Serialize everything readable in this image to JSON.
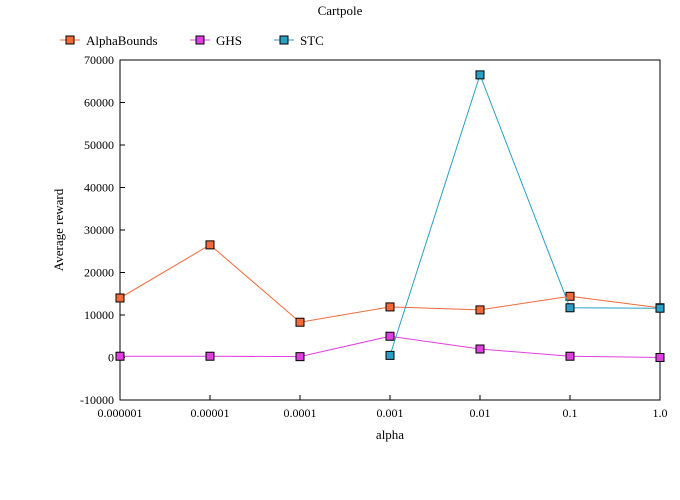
{
  "chart_data": {
    "type": "line",
    "title": "Cartpole",
    "xlabel": "alpha",
    "ylabel": "Average reward",
    "categories": [
      "0.000001",
      "0.00001",
      "0.0001",
      "0.001",
      "0.01",
      "0.1",
      "1.0"
    ],
    "ylim": [
      -10000,
      70000
    ],
    "yticks": [
      "-10000",
      "0",
      "10000",
      "20000",
      "30000",
      "40000",
      "50000",
      "60000",
      "70000"
    ],
    "legend_position": "top-left",
    "grid": false,
    "series": [
      {
        "name": "AlphaBounds",
        "color": "#f26a3a",
        "marker": "square",
        "values": [
          14000,
          26500,
          8300,
          11900,
          11200,
          14400,
          11700
        ]
      },
      {
        "name": "GHS",
        "color": "#e040e0",
        "marker": "square",
        "values": [
          300,
          300,
          200,
          5000,
          2000,
          300,
          0
        ]
      },
      {
        "name": "STC",
        "color": "#2a9fc4",
        "marker": "square",
        "values": [
          null,
          null,
          null,
          500,
          66500,
          11700,
          11600
        ]
      }
    ]
  }
}
